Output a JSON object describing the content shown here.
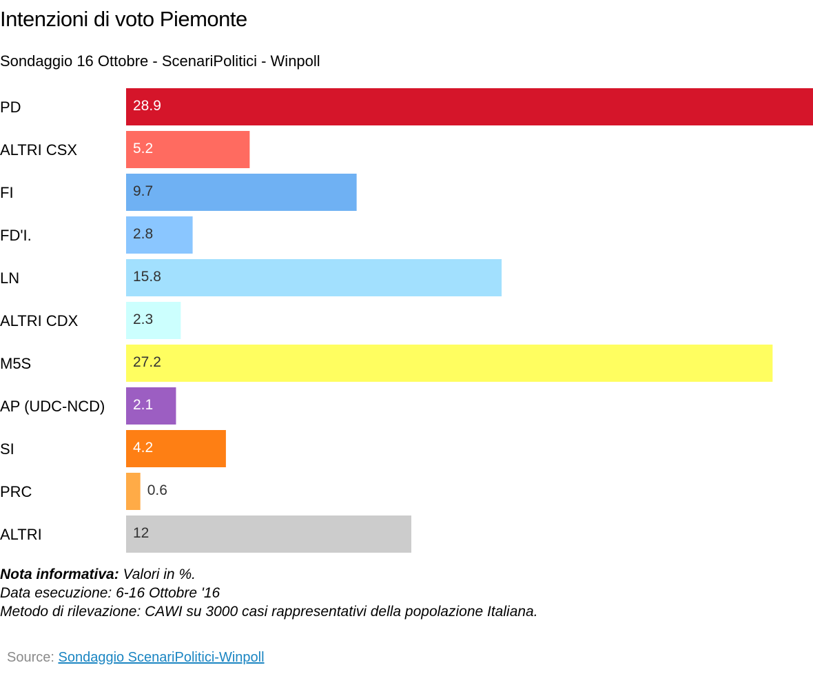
{
  "title": "Intenzioni di voto Piemonte",
  "subtitle": "Sondaggio 16 Ottobre - ScenariPolitici - Winpoll",
  "notes": {
    "label": "Nota informativa:",
    "line1": " Valori in %.",
    "line2": "Data esecuzione: 6-16  Ottobre '16",
    "line3": "Metodo di rilevazione: CAWI su 3000 casi rappresentativi della popolazione Italiana."
  },
  "source": {
    "label": "Source: ",
    "link_text": "Sondaggio ScenariPolitici-Winpoll"
  },
  "chart_data": {
    "type": "bar",
    "orientation": "horizontal",
    "categories": [
      "PD",
      "ALTRI CSX",
      "FI",
      "FD'I.",
      "LN",
      "ALTRI CDX",
      "M5S",
      "AP (UDC-NCD)",
      "SI",
      "PRC",
      "ALTRI"
    ],
    "values": [
      28.9,
      5.2,
      9.7,
      2.8,
      15.8,
      2.3,
      27.2,
      2.1,
      4.2,
      0.6,
      12
    ],
    "value_labels": [
      "28.9",
      "5.2",
      "9.7",
      "2.8",
      "15.8",
      "2.3",
      "27.2",
      "2.1",
      "4.2",
      "0.6",
      "12"
    ],
    "colors": [
      "#d5152a",
      "#ff6b60",
      "#6fb1f3",
      "#8ac6ff",
      "#a2e0fe",
      "#ccfffe",
      "#fffe60",
      "#9c5ec2",
      "#fe7f14",
      "#ffab47",
      "#cccccc"
    ],
    "label_colors": [
      "#ffffff",
      "#ffffff",
      "#333333",
      "#333333",
      "#333333",
      "#333333",
      "#333333",
      "#ffffff",
      "#ffffff",
      "#333333",
      "#333333"
    ],
    "xlim": [
      0,
      28.9
    ],
    "grid": false,
    "legend": "none"
  }
}
